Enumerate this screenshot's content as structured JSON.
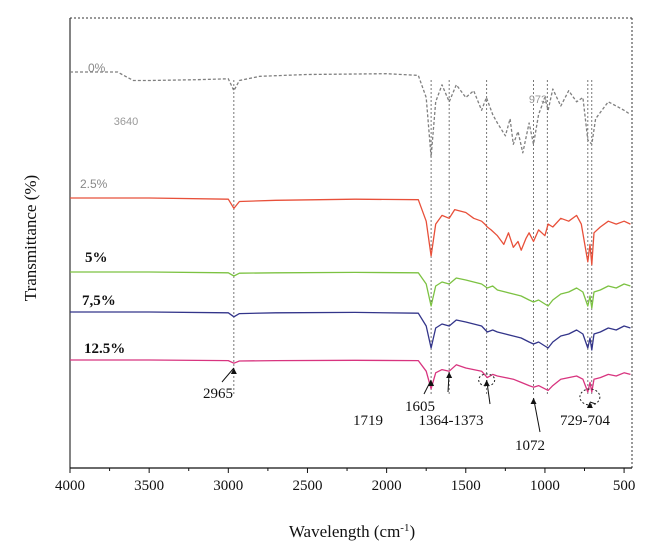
{
  "chart_data": {
    "type": "line",
    "xlabel": "Wavelength (cm",
    "xlabel_sup": "-1",
    "xlabel_end": ")",
    "ylabel": "Transmittance (%)",
    "xlim": [
      4000,
      450
    ],
    "x_ticks": [
      4000,
      3500,
      3000,
      2500,
      2000,
      1500,
      1000,
      500
    ],
    "x_tick_labels": [
      "4000",
      "3500",
      "3000",
      "2500",
      "2000",
      "1500",
      "1000",
      "500"
    ],
    "grid": false,
    "series": [
      {
        "name": "0%",
        "color": "#7f7f7f",
        "style": "dashed",
        "baseline": 0.0,
        "x": [
          4000,
          3700,
          3650,
          3600,
          3500,
          3200,
          3000,
          2965,
          2930,
          2800,
          2500,
          2000,
          1800,
          1750,
          1719,
          1690,
          1650,
          1605,
          1560,
          1500,
          1450,
          1400,
          1370,
          1330,
          1300,
          1250,
          1220,
          1200,
          1170,
          1140,
          1100,
          1072,
          1040,
          1000,
          980,
          950,
          900,
          850,
          800,
          760,
          729,
          704,
          680,
          640,
          600,
          550,
          500,
          460
        ],
        "y": [
          0,
          0,
          0.05,
          0.1,
          0.1,
          0.09,
          0.08,
          0.22,
          0.1,
          0.05,
          0.03,
          0.02,
          0.04,
          0.3,
          1.0,
          0.35,
          0.15,
          0.35,
          0.15,
          0.3,
          0.22,
          0.45,
          0.3,
          0.5,
          0.6,
          0.75,
          0.55,
          0.85,
          0.7,
          0.95,
          0.6,
          0.85,
          0.5,
          0.3,
          0.45,
          0.2,
          0.4,
          0.22,
          0.35,
          0.3,
          0.8,
          0.85,
          0.55,
          0.45,
          0.35,
          0.4,
          0.45,
          0.5
        ]
      },
      {
        "name": "2.5%",
        "color": "#e8503a",
        "style": "solid",
        "baseline": 0.0,
        "x": [
          4000,
          3500,
          3000,
          2965,
          2930,
          2700,
          2200,
          1800,
          1750,
          1719,
          1690,
          1650,
          1605,
          1570,
          1500,
          1450,
          1400,
          1380,
          1364,
          1340,
          1300,
          1260,
          1230,
          1200,
          1170,
          1150,
          1120,
          1100,
          1072,
          1040,
          1000,
          980,
          950,
          900,
          850,
          800,
          770,
          729,
          715,
          704,
          690,
          650,
          600,
          550,
          500,
          460
        ],
        "y": [
          0,
          0,
          0.02,
          0.18,
          0.06,
          0.04,
          0.02,
          0.03,
          0.4,
          1.0,
          0.45,
          0.3,
          0.35,
          0.2,
          0.25,
          0.35,
          0.4,
          0.45,
          0.5,
          0.55,
          0.65,
          0.8,
          0.6,
          0.85,
          0.75,
          0.9,
          0.7,
          0.6,
          0.75,
          0.55,
          0.65,
          0.45,
          0.5,
          0.35,
          0.4,
          0.3,
          0.45,
          1.1,
          0.8,
          1.15,
          0.6,
          0.5,
          0.4,
          0.45,
          0.4,
          0.45
        ]
      },
      {
        "name": "5%",
        "color": "#7cc242",
        "style": "solid",
        "baseline": 0.0,
        "x": [
          4000,
          3500,
          3000,
          2965,
          2930,
          2700,
          2200,
          1800,
          1750,
          1719,
          1690,
          1650,
          1605,
          1560,
          1500,
          1450,
          1400,
          1364,
          1330,
          1300,
          1250,
          1200,
          1150,
          1100,
          1072,
          1040,
          1000,
          980,
          950,
          900,
          850,
          800,
          760,
          729,
          715,
          704,
          690,
          650,
          600,
          550,
          500,
          460
        ],
        "y": [
          0,
          0,
          0.02,
          0.1,
          0.03,
          0.02,
          0.01,
          0.02,
          0.3,
          0.85,
          0.35,
          0.25,
          0.3,
          0.15,
          0.2,
          0.25,
          0.3,
          0.4,
          0.35,
          0.45,
          0.5,
          0.55,
          0.6,
          0.7,
          0.75,
          0.7,
          0.8,
          0.85,
          0.7,
          0.55,
          0.5,
          0.4,
          0.5,
          0.85,
          0.6,
          0.9,
          0.5,
          0.45,
          0.35,
          0.4,
          0.3,
          0.35
        ]
      },
      {
        "name": "7,5%",
        "color": "#33358a",
        "style": "solid",
        "baseline": 0.0,
        "x": [
          4000,
          3500,
          3000,
          2965,
          2930,
          2700,
          2200,
          1800,
          1750,
          1719,
          1690,
          1650,
          1605,
          1560,
          1500,
          1450,
          1400,
          1364,
          1330,
          1300,
          1250,
          1200,
          1150,
          1100,
          1072,
          1040,
          1000,
          980,
          950,
          900,
          850,
          800,
          760,
          729,
          715,
          704,
          690,
          650,
          600,
          550,
          500,
          460
        ],
        "y": [
          0,
          0,
          0.02,
          0.12,
          0.04,
          0.02,
          0.01,
          0.03,
          0.35,
          0.9,
          0.4,
          0.3,
          0.35,
          0.2,
          0.25,
          0.3,
          0.35,
          0.5,
          0.45,
          0.5,
          0.55,
          0.6,
          0.65,
          0.75,
          0.8,
          0.75,
          0.85,
          0.9,
          0.75,
          0.6,
          0.55,
          0.45,
          0.55,
          0.9,
          0.65,
          0.95,
          0.55,
          0.5,
          0.4,
          0.45,
          0.35,
          0.4
        ]
      },
      {
        "name": "12.5%",
        "color": "#d8347f",
        "style": "solid",
        "baseline": 0.0,
        "x": [
          4000,
          3500,
          3000,
          2965,
          2930,
          2700,
          2200,
          1800,
          1750,
          1719,
          1690,
          1650,
          1605,
          1560,
          1500,
          1450,
          1400,
          1364,
          1330,
          1300,
          1250,
          1200,
          1150,
          1100,
          1072,
          1040,
          1000,
          980,
          950,
          900,
          850,
          800,
          760,
          729,
          715,
          704,
          690,
          650,
          600,
          550,
          500,
          460
        ],
        "y": [
          0,
          0,
          0.02,
          0.1,
          0.03,
          0.02,
          0.01,
          0.02,
          0.35,
          0.9,
          0.4,
          0.3,
          0.35,
          0.15,
          0.25,
          0.3,
          0.35,
          0.55,
          0.45,
          0.5,
          0.55,
          0.6,
          0.7,
          0.8,
          0.85,
          0.8,
          0.9,
          0.95,
          0.8,
          0.6,
          0.55,
          0.5,
          0.6,
          1.0,
          0.7,
          1.0,
          0.6,
          0.55,
          0.45,
          0.5,
          0.4,
          0.45
        ]
      }
    ],
    "annotations": [
      {
        "text": "2965",
        "x": 2965
      },
      {
        "text": "1719",
        "x": 1719
      },
      {
        "text": "1605",
        "x": 1605
      },
      {
        "text": "1364-1373",
        "x": 1368
      },
      {
        "text": "1072",
        "x": 1072
      },
      {
        "text": "729-704",
        "x": 716
      }
    ],
    "faint_annotations": [
      {
        "text": "3640",
        "x": 3640
      },
      {
        "text": "973",
        "x": 973
      }
    ],
    "guide_lines_x": [
      2965,
      1719,
      1605,
      1368,
      1072,
      985,
      729,
      704
    ]
  }
}
